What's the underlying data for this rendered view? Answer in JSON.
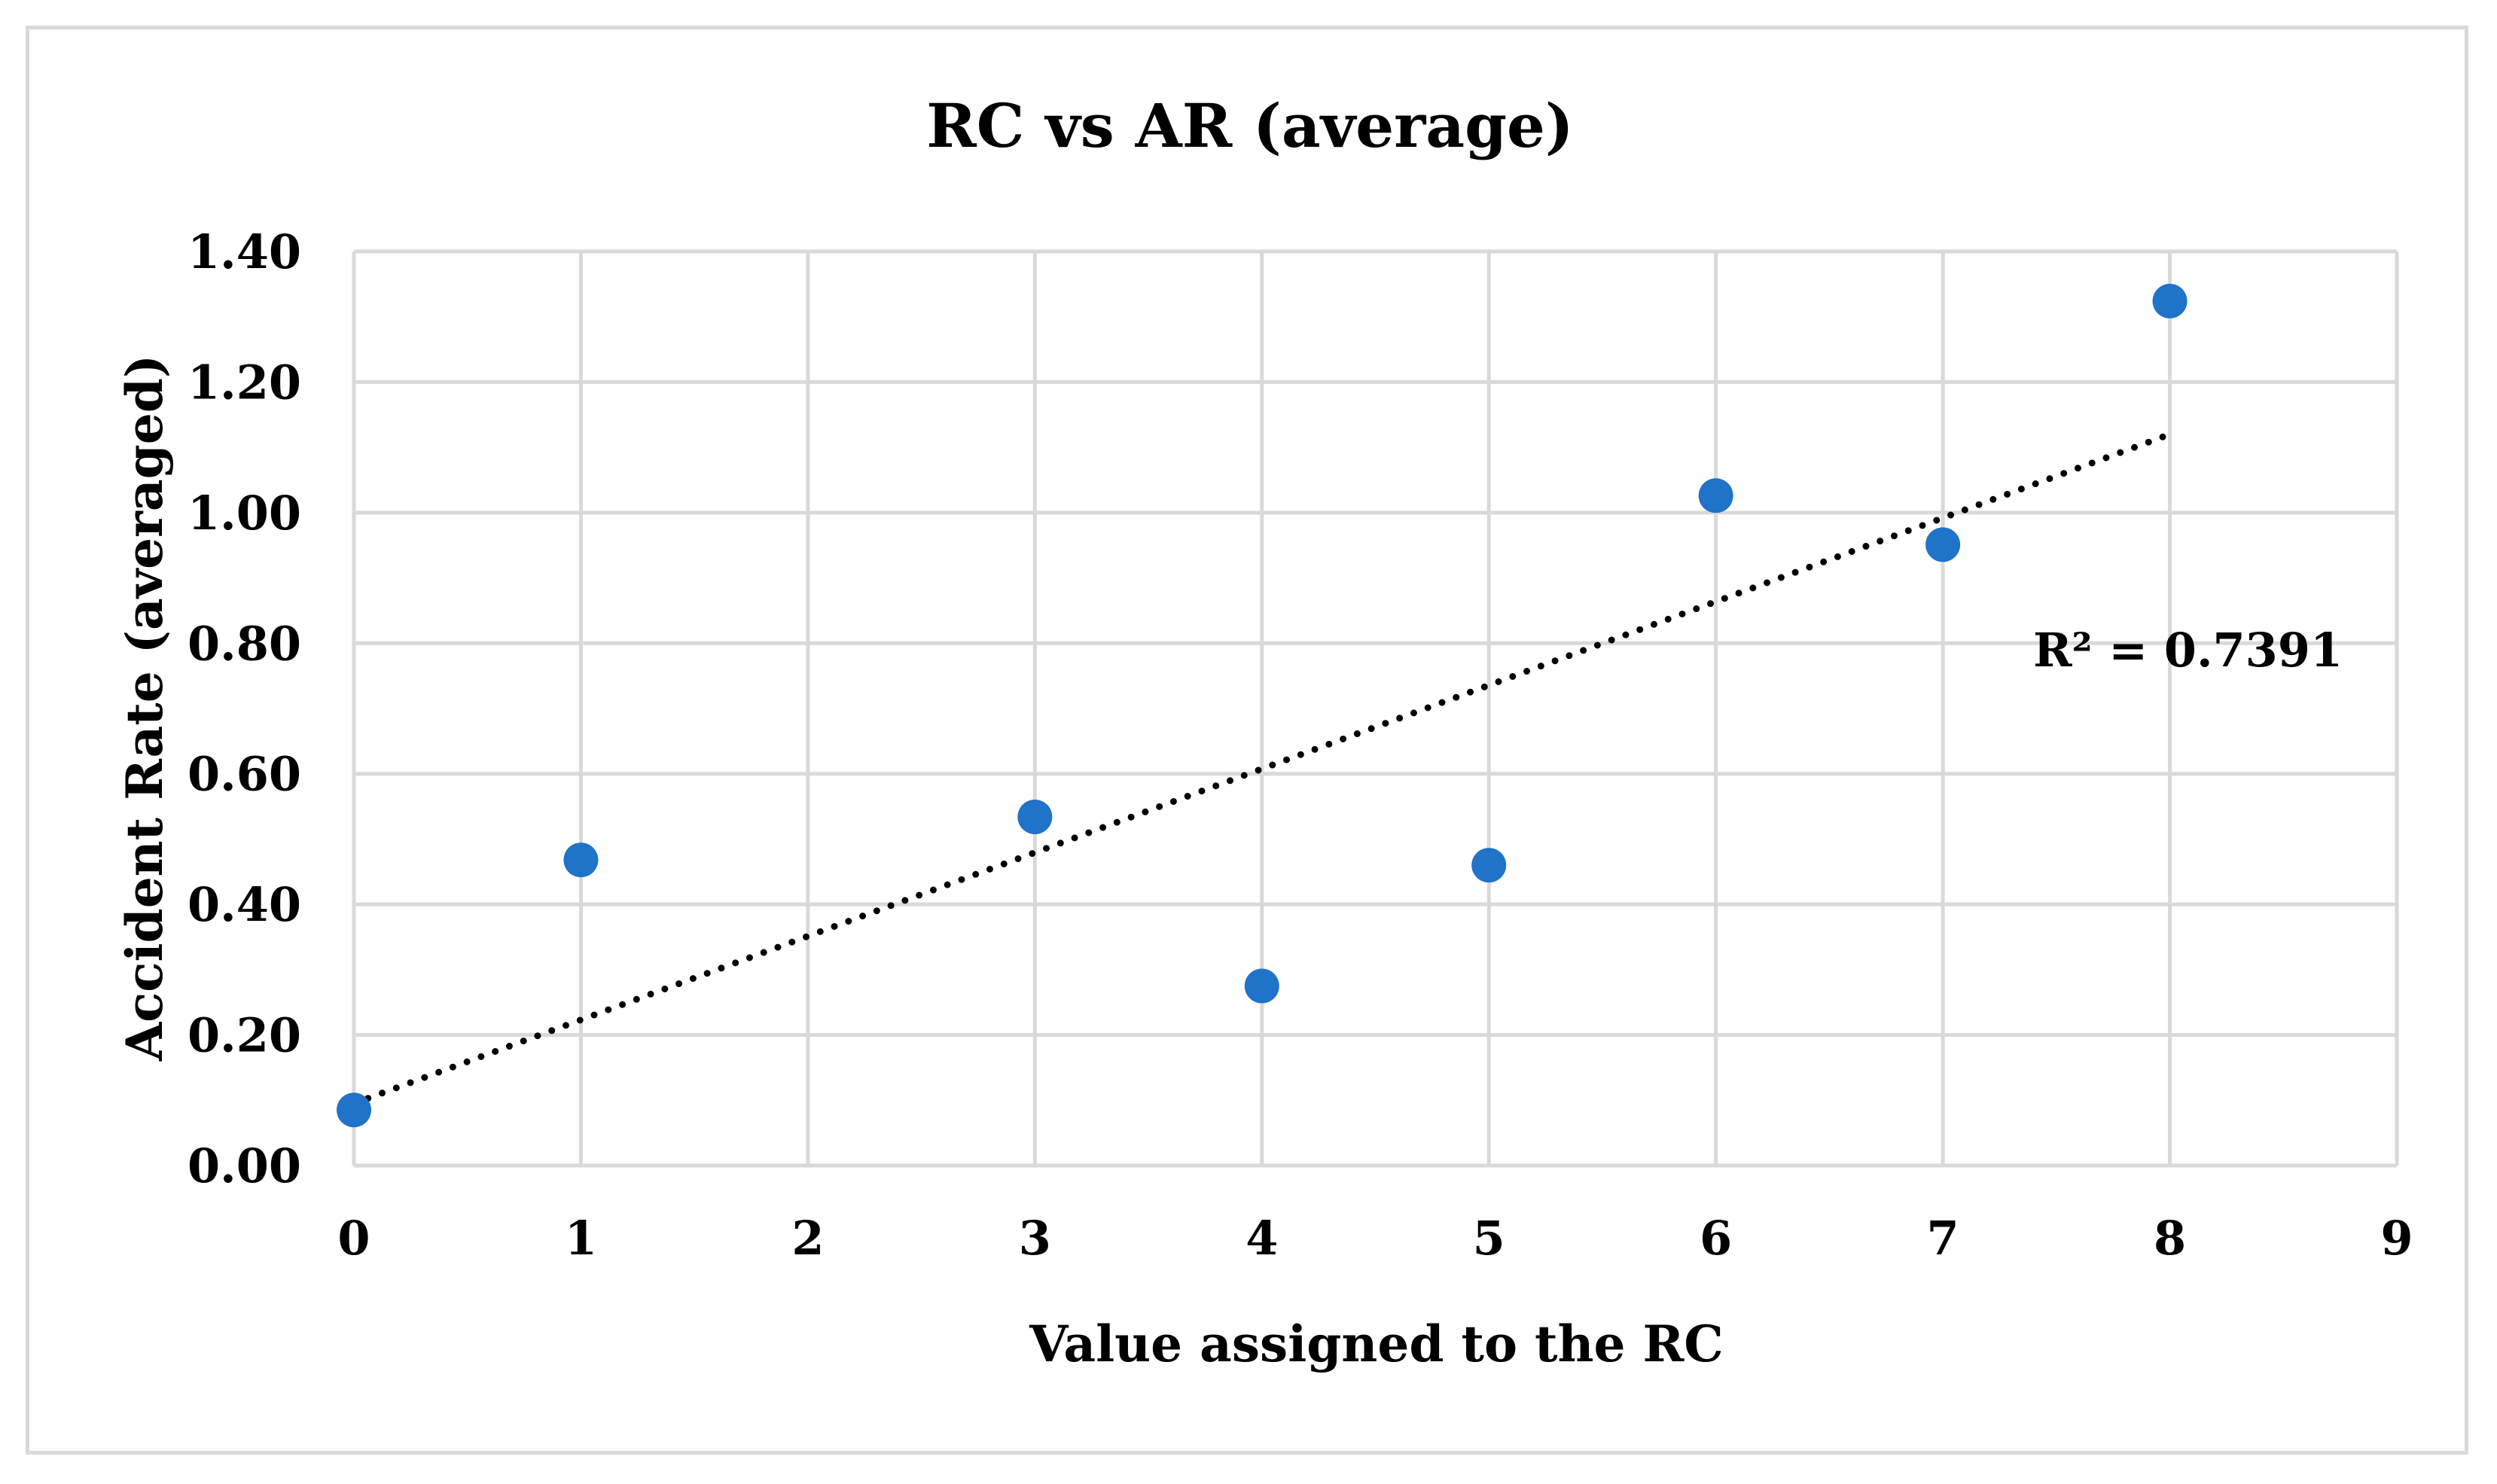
{
  "chart_data": {
    "type": "scatter",
    "title": "RC vs AR (average)",
    "xlabel": "Value assigned to the RC",
    "ylabel": "Accident Rate (averaged)",
    "xlim": [
      0,
      9
    ],
    "ylim": [
      0,
      1.4
    ],
    "x_ticks": [
      "0",
      "1",
      "2",
      "3",
      "4",
      "5",
      "6",
      "7",
      "8",
      "9"
    ],
    "y_ticks": [
      "0.00",
      "0.20",
      "0.40",
      "0.60",
      "0.80",
      "1.00",
      "1.20",
      "1.40"
    ],
    "grid": true,
    "series": [
      {
        "name": "AR (average)",
        "x": [
          0,
          1,
          3,
          4,
          5,
          6,
          7,
          8
        ],
        "y": [
          0.085,
          0.468,
          0.534,
          0.275,
          0.46,
          1.026,
          0.951,
          1.324
        ]
      }
    ],
    "trendline": {
      "type": "linear",
      "x_start": 0,
      "y_start": 0.095,
      "x_end": 8,
      "y_end": 1.12,
      "label": "R² = 0.7391"
    },
    "colors": {
      "points": "#1f73c8",
      "grid": "#d9d9d9",
      "trendline": "#000000"
    }
  }
}
